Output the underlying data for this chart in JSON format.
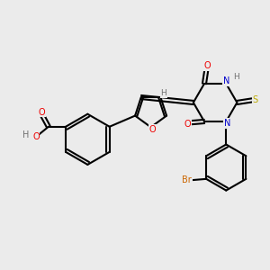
{
  "bg_color": "#ebebeb",
  "atom_colors": {
    "C": "#000000",
    "H": "#707070",
    "N": "#0000cc",
    "O": "#ee0000",
    "S": "#bbaa00",
    "Br": "#cc6600"
  },
  "bond_color": "#000000",
  "bond_lw": 1.5
}
